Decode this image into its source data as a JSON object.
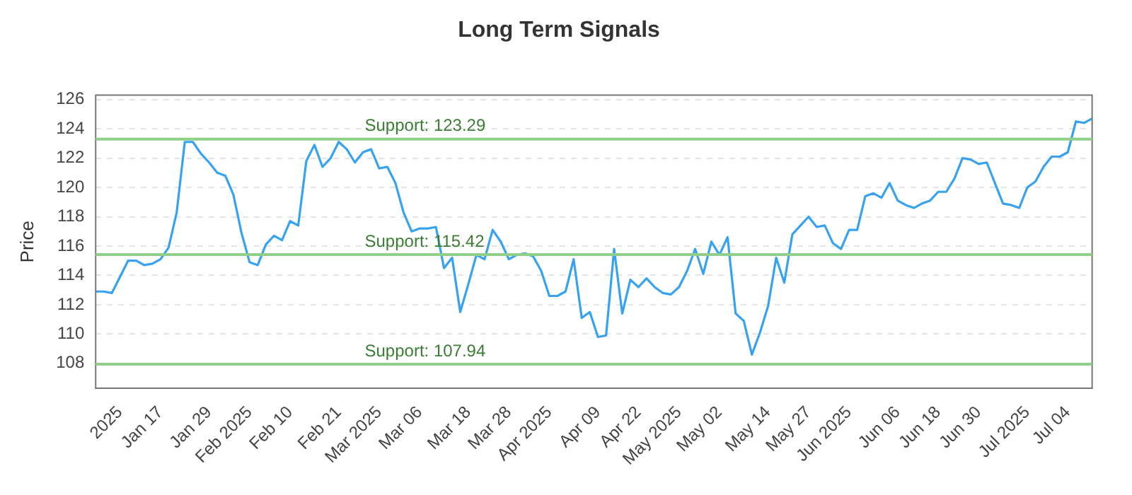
{
  "chart_data": {
    "type": "line",
    "title": "Long Term Signals",
    "ylabel": "Price",
    "categories": [
      null,
      null,
      null,
      "2025",
      null,
      null,
      null,
      null,
      "Jan 17",
      null,
      null,
      null,
      null,
      null,
      "Jan 29",
      null,
      null,
      null,
      null,
      "Feb 2025",
      null,
      null,
      null,
      null,
      "Feb 10",
      null,
      null,
      null,
      null,
      null,
      "Feb 21",
      null,
      null,
      null,
      null,
      "Mar 2025",
      null,
      null,
      null,
      null,
      "Mar 06",
      null,
      null,
      null,
      null,
      null,
      "Mar 18",
      null,
      null,
      null,
      null,
      "Mar 28",
      null,
      null,
      null,
      null,
      "Apr 2025",
      null,
      null,
      null,
      null,
      null,
      "Apr 09",
      null,
      null,
      null,
      null,
      "Apr 22",
      null,
      null,
      null,
      null,
      "May 2025",
      null,
      null,
      null,
      null,
      "May 02",
      null,
      null,
      null,
      null,
      null,
      "May 14",
      null,
      null,
      null,
      null,
      "May 27",
      null,
      null,
      null,
      null,
      "Jun 2025",
      null,
      null,
      null,
      null,
      null,
      "Jun 06",
      null,
      null,
      null,
      null,
      "Jun 18",
      null,
      null,
      null,
      null,
      "Jun 30",
      null,
      null,
      null,
      null,
      null,
      "Jul 2025",
      null,
      null,
      null,
      null,
      "Jul 04",
      null,
      null,
      null
    ],
    "series": [
      {
        "color": "#36a2f0",
        "values": [
          112.9,
          112.9,
          112.8,
          113.9,
          115.0,
          115.0,
          114.7,
          114.8,
          115.1,
          115.9,
          118.3,
          123.1,
          123.1,
          122.3,
          121.7,
          121.0,
          120.8,
          119.5,
          116.9,
          114.9,
          114.7,
          116.1,
          116.7,
          116.4,
          117.7,
          117.4,
          121.8,
          122.9,
          121.4,
          122.0,
          123.1,
          122.6,
          121.7,
          122.4,
          122.6,
          121.3,
          121.4,
          120.3,
          118.3,
          117.0,
          117.2,
          117.2,
          117.3,
          114.5,
          115.2,
          111.5,
          113.4,
          115.4,
          115.1,
          117.1,
          116.3,
          115.1,
          115.4,
          115.5,
          115.3,
          114.3,
          112.6,
          112.6,
          112.9,
          115.1,
          111.1,
          111.5,
          109.8,
          109.9,
          115.8,
          111.4,
          113.7,
          113.2,
          113.8,
          113.2,
          112.8,
          112.7,
          113.2,
          114.3,
          115.8,
          114.1,
          116.3,
          115.4,
          116.6,
          111.4,
          110.9,
          108.6,
          110.1,
          111.9,
          115.2,
          113.5,
          116.8,
          117.4,
          118.0,
          117.3,
          117.4,
          116.2,
          115.8,
          117.1,
          117.1,
          119.4,
          119.6,
          119.3,
          120.3,
          119.1,
          118.8,
          118.6,
          118.9,
          119.1,
          119.7,
          119.7,
          120.6,
          122.0,
          121.9,
          121.6,
          121.7,
          120.3,
          118.9,
          118.8,
          118.6,
          120.0,
          120.4,
          121.4,
          122.1,
          122.1,
          122.4,
          124.5,
          124.4,
          124.7
        ]
      }
    ],
    "ylim": [
      106.3,
      126.3
    ],
    "yticks": [
      108,
      110,
      112,
      114,
      116,
      118,
      120,
      122,
      124,
      126
    ],
    "ref_lines": [
      {
        "axis": "y",
        "value": 123.29,
        "label": "Support: 123.29",
        "color": "#8fcf8a"
      },
      {
        "axis": "y",
        "value": 115.42,
        "label": "Support: 115.42",
        "color": "#8fcf8a"
      },
      {
        "axis": "y",
        "value": 107.94,
        "label": "Support: 107.94",
        "color": "#8fcf8a"
      }
    ],
    "grid": "y",
    "legend": false,
    "marker": "none",
    "line_style": "solid"
  }
}
